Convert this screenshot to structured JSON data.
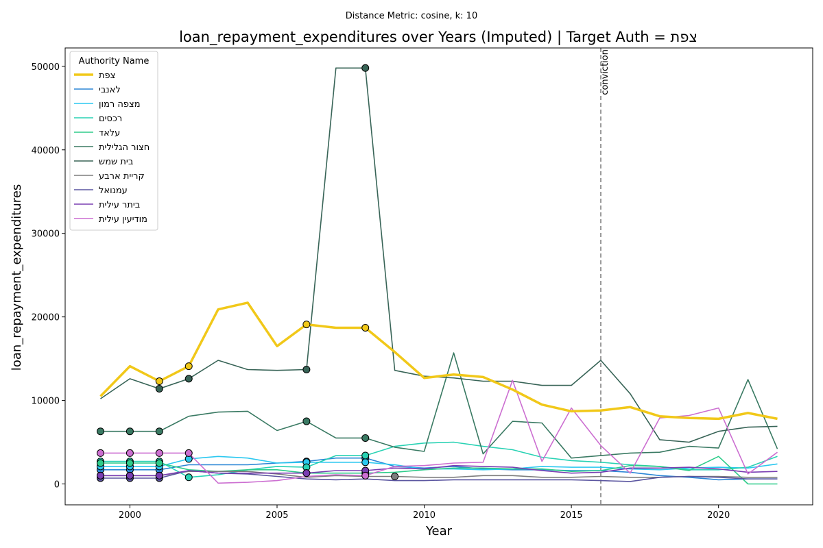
{
  "chart_data": {
    "type": "line",
    "suptitle": "Distance Metric: cosine, k: 10",
    "title": "loan_repayment_expenditures over Years (Imputed) | Target Auth = צפת",
    "xlabel": "Year",
    "ylabel": "loan_repayment_expenditures",
    "xlim": [
      1997.8,
      2023.2
    ],
    "ylim": [
      -2500,
      52200
    ],
    "xticks": [
      2000,
      2005,
      2010,
      2015,
      2020
    ],
    "yticks": [
      0,
      10000,
      20000,
      30000,
      40000,
      50000
    ],
    "grid": false,
    "legend": {
      "title": "Authority Name",
      "position": "top-left"
    },
    "annotation": {
      "x": 2016,
      "label": "conviction",
      "style": "dashed",
      "color": "#808080"
    },
    "x": [
      1999,
      2000,
      2001,
      2002,
      2003,
      2004,
      2005,
      2006,
      2007,
      2008,
      2009,
      2010,
      2011,
      2012,
      2013,
      2014,
      2015,
      2016,
      2017,
      2018,
      2019,
      2020,
      2021,
      2022
    ],
    "series": [
      {
        "name": "צפת",
        "color": "#f1c819",
        "width": 3.5,
        "target": true,
        "values": [
          10500,
          14100,
          12300,
          14100,
          20900,
          21700,
          16500,
          19100,
          18700,
          18700,
          15800,
          12700,
          13100,
          12800,
          11300,
          9500,
          8700,
          8800,
          9200,
          8100,
          7900,
          7800,
          8500,
          7800
        ],
        "imputed": [
          2001,
          2002,
          2006,
          2008
        ]
      },
      {
        "name": "לאנבי",
        "color": "#2b86d6",
        "width": 1.6,
        "values": [
          1700,
          1700,
          1700,
          2300,
          2300,
          2300,
          2500,
          2700,
          3100,
          3100,
          2100,
          1900,
          2100,
          1800,
          1700,
          1700,
          1600,
          1600,
          1400,
          1000,
          800,
          500,
          600,
          600
        ],
        "imputed": [
          1999,
          2000,
          2001,
          2006,
          2008
        ]
      },
      {
        "name": "מצפה רמון",
        "color": "#2bc8f0",
        "width": 1.6,
        "values": [
          2100,
          2100,
          2100,
          3000,
          3300,
          3100,
          2500,
          2600,
          2600,
          2600,
          2300,
          1800,
          1800,
          1700,
          1800,
          2100,
          2000,
          2000,
          1800,
          1700,
          1900,
          2000,
          1900,
          2400
        ],
        "imputed": [
          1999,
          2000,
          2001,
          2002,
          2006,
          2008
        ]
      },
      {
        "name": "רכסים",
        "color": "#29d2b4",
        "width": 1.6,
        "values": [
          2700,
          2700,
          2700,
          800,
          1100,
          1700,
          2100,
          2000,
          3400,
          3400,
          4500,
          4900,
          5000,
          4500,
          4100,
          3200,
          2800,
          2600,
          2300,
          2100,
          1700,
          1700,
          2000,
          3300
        ],
        "imputed": [
          1999,
          2000,
          2001,
          2002,
          2006,
          2008
        ]
      },
      {
        "name": "עלאד",
        "color": "#2ecc8a",
        "width": 1.6,
        "values": [
          2500,
          2500,
          2500,
          1700,
          1500,
          1700,
          1700,
          1300,
          1300,
          1300,
          1400,
          1700,
          1900,
          1900,
          1800,
          1800,
          1500,
          1600,
          2200,
          2100,
          1600,
          3300,
          0,
          0
        ],
        "imputed": [
          1999,
          2000,
          2001,
          2006,
          2008
        ]
      },
      {
        "name": "חצור הגלילית",
        "color": "#3a7a63",
        "width": 1.6,
        "values": [
          6300,
          6300,
          6300,
          8100,
          8600,
          8700,
          6400,
          7500,
          5500,
          5500,
          4400,
          3900,
          15700,
          3600,
          7500,
          7300,
          3100,
          3400,
          3700,
          3800,
          4500,
          4300,
          12500,
          4200
        ],
        "imputed": [
          1999,
          2000,
          2001,
          2006,
          2008
        ]
      },
      {
        "name": "בית שמש",
        "color": "#386457",
        "width": 1.6,
        "values": [
          10200,
          12600,
          11400,
          12600,
          14800,
          13700,
          13600,
          13700,
          49800,
          49800,
          13600,
          12900,
          12700,
          12300,
          12300,
          11800,
          11800,
          14800,
          10800,
          5300,
          5000,
          6300,
          6800,
          6900
        ],
        "imputed": [
          2001,
          2002,
          2006,
          2008
        ]
      },
      {
        "name": "קריית ארבע",
        "color": "#7d7d7d",
        "width": 1.6,
        "values": [
          1000,
          1000,
          1000,
          1500,
          1500,
          1500,
          1200,
          800,
          1000,
          900,
          900,
          800,
          800,
          1000,
          1000,
          800,
          800,
          900,
          800,
          800,
          900,
          900,
          800,
          800
        ],
        "imputed": [
          1999,
          2000,
          2001,
          2009
        ]
      },
      {
        "name": "עמנואל",
        "color": "#5b56a0",
        "width": 1.6,
        "values": [
          700,
          700,
          700,
          1600,
          1300,
          1200,
          900,
          600,
          500,
          600,
          400,
          400,
          500,
          500,
          500,
          500,
          500,
          400,
          300,
          800,
          900,
          800,
          600,
          600
        ],
        "imputed": [
          1999,
          2000,
          2001
        ]
      },
      {
        "name": "ביתר עילית",
        "color": "#7a3eb2",
        "width": 1.6,
        "values": [
          1000,
          1000,
          1000,
          1600,
          1300,
          1300,
          1300,
          1300,
          1600,
          1600,
          1900,
          1800,
          2200,
          2100,
          2000,
          1600,
          1300,
          1400,
          1900,
          1900,
          2000,
          1800,
          1400,
          1500
        ],
        "imputed": [
          1999,
          2000,
          2001,
          2006,
          2008
        ]
      },
      {
        "name": "מודיעין עילית",
        "color": "#cc6fd1",
        "width": 1.6,
        "values": [
          3700,
          3700,
          3700,
          3700,
          100,
          200,
          400,
          900,
          1100,
          1000,
          2100,
          2200,
          2500,
          2600,
          12400,
          2700,
          9100,
          4600,
          1300,
          7900,
          8200,
          9100,
          1200,
          3800
        ],
        "imputed": [
          1999,
          2000,
          2001,
          2002,
          2008
        ]
      }
    ]
  }
}
